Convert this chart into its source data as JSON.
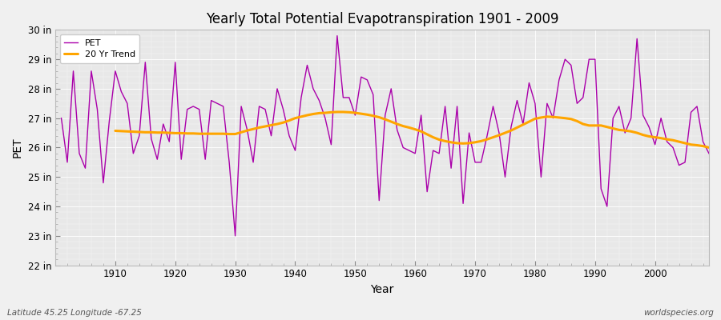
{
  "title": "Yearly Total Potential Evapotranspiration 1901 - 2009",
  "xlabel": "Year",
  "ylabel": "PET",
  "subtitle_left": "Latitude 45.25 Longitude -67.25",
  "subtitle_right": "worldspecies.org",
  "pet_color": "#aa00aa",
  "trend_color": "#FFA500",
  "fig_bg_color": "#f0f0f0",
  "plot_bg_color": "#e8e8e8",
  "ylim": [
    22,
    30
  ],
  "yticks": [
    22,
    23,
    24,
    25,
    26,
    27,
    28,
    29,
    30
  ],
  "ytick_labels": [
    "22 in",
    "23 in",
    "24 in",
    "25 in",
    "26 in",
    "27 in",
    "28 in",
    "29 in",
    "30 in"
  ],
  "years": [
    1901,
    1902,
    1903,
    1904,
    1905,
    1906,
    1907,
    1908,
    1909,
    1910,
    1911,
    1912,
    1913,
    1914,
    1915,
    1916,
    1917,
    1918,
    1919,
    1920,
    1921,
    1922,
    1923,
    1924,
    1925,
    1926,
    1927,
    1928,
    1929,
    1930,
    1931,
    1932,
    1933,
    1934,
    1935,
    1936,
    1937,
    1938,
    1939,
    1940,
    1941,
    1942,
    1943,
    1944,
    1945,
    1946,
    1947,
    1948,
    1949,
    1950,
    1951,
    1952,
    1953,
    1954,
    1955,
    1956,
    1957,
    1958,
    1959,
    1960,
    1961,
    1962,
    1963,
    1964,
    1965,
    1966,
    1967,
    1968,
    1969,
    1970,
    1971,
    1972,
    1973,
    1974,
    1975,
    1976,
    1977,
    1978,
    1979,
    1980,
    1981,
    1982,
    1983,
    1984,
    1985,
    1986,
    1987,
    1988,
    1989,
    1990,
    1991,
    1992,
    1993,
    1994,
    1995,
    1996,
    1997,
    1998,
    1999,
    2000,
    2001,
    2002,
    2003,
    2004,
    2005,
    2006,
    2007,
    2008,
    2009
  ],
  "pet_values": [
    27.0,
    25.5,
    28.6,
    25.8,
    25.3,
    28.6,
    27.3,
    24.8,
    26.9,
    28.6,
    27.9,
    27.5,
    25.8,
    26.4,
    28.9,
    26.3,
    25.6,
    26.8,
    26.2,
    28.9,
    25.6,
    27.3,
    27.4,
    27.3,
    25.6,
    27.6,
    27.5,
    27.4,
    25.5,
    23.0,
    27.4,
    26.6,
    25.5,
    27.4,
    27.3,
    26.4,
    28.0,
    27.3,
    26.4,
    25.9,
    27.7,
    28.8,
    28.0,
    27.6,
    27.0,
    26.1,
    29.8,
    27.7,
    27.7,
    27.1,
    28.4,
    28.3,
    27.8,
    24.2,
    27.1,
    28.0,
    26.6,
    26.0,
    25.9,
    25.8,
    27.1,
    24.5,
    25.9,
    25.8,
    27.4,
    25.3,
    27.4,
    24.1,
    26.5,
    25.5,
    25.5,
    26.4,
    27.4,
    26.5,
    25.0,
    26.7,
    27.6,
    26.8,
    28.2,
    27.5,
    25.0,
    27.5,
    27.0,
    28.3,
    29.0,
    28.8,
    27.5,
    27.7,
    29.0,
    29.0,
    24.6,
    24.0,
    27.0,
    27.4,
    26.5,
    27.0,
    29.7,
    27.1,
    26.7,
    26.1,
    27.0,
    26.2,
    26.0,
    25.4,
    25.5,
    27.2,
    27.4,
    26.2,
    25.8
  ],
  "trend_years": [
    1910,
    1911,
    1912,
    1913,
    1914,
    1915,
    1916,
    1917,
    1918,
    1919,
    1920,
    1921,
    1922,
    1923,
    1924,
    1925,
    1926,
    1927,
    1928,
    1929,
    1930,
    1931,
    1932,
    1933,
    1934,
    1935,
    1936,
    1937,
    1938,
    1939,
    1940,
    1941,
    1942,
    1943,
    1944,
    1945,
    1946,
    1947,
    1948,
    1949,
    1950,
    1951,
    1952,
    1953,
    1954,
    1955,
    1956,
    1957,
    1958,
    1959,
    1960,
    1961,
    1962,
    1963,
    1964,
    1965,
    1966,
    1967,
    1968,
    1969,
    1970,
    1971,
    1972,
    1973,
    1974,
    1975,
    1976,
    1977,
    1978,
    1979,
    1980,
    1981,
    1982,
    1983,
    1984,
    1985,
    1986,
    1987,
    1988,
    1989,
    1990,
    1991,
    1992,
    1993,
    1994,
    1995,
    1996,
    1997,
    1998,
    1999,
    2000,
    2001,
    2002,
    2003,
    2004,
    2005,
    2006,
    2007,
    2008,
    2009
  ],
  "trend_values": [
    26.57,
    26.56,
    26.55,
    26.54,
    26.53,
    26.52,
    26.52,
    26.51,
    26.51,
    26.5,
    26.49,
    26.49,
    26.48,
    26.48,
    26.47,
    26.47,
    26.47,
    26.47,
    26.47,
    26.46,
    26.46,
    26.52,
    26.58,
    26.63,
    26.68,
    26.72,
    26.76,
    26.8,
    26.85,
    26.92,
    27.0,
    27.05,
    27.1,
    27.14,
    27.17,
    27.18,
    27.2,
    27.21,
    27.21,
    27.2,
    27.18,
    27.15,
    27.12,
    27.08,
    27.03,
    26.96,
    26.88,
    26.8,
    26.73,
    26.68,
    26.62,
    26.55,
    26.45,
    26.35,
    26.27,
    26.22,
    26.18,
    26.15,
    26.14,
    26.15,
    26.18,
    26.22,
    26.28,
    26.35,
    26.42,
    26.5,
    26.58,
    26.68,
    26.78,
    26.88,
    26.98,
    27.02,
    27.05,
    27.04,
    27.02,
    27.0,
    26.97,
    26.9,
    26.8,
    26.75,
    26.75,
    26.75,
    26.7,
    26.65,
    26.6,
    26.58,
    26.55,
    26.5,
    26.43,
    26.38,
    26.35,
    26.32,
    26.28,
    26.25,
    26.2,
    26.15,
    26.1,
    26.08,
    26.05,
    26.0
  ],
  "xlim_left": 1900,
  "xlim_right": 2009,
  "xtick_positions": [
    1910,
    1920,
    1930,
    1940,
    1950,
    1960,
    1970,
    1980,
    1990,
    2000
  ],
  "xtick_labels": [
    "1910",
    "1920",
    "1930",
    "1940",
    "1950",
    "1960",
    "1970",
    "1980",
    "1990",
    "2000"
  ]
}
